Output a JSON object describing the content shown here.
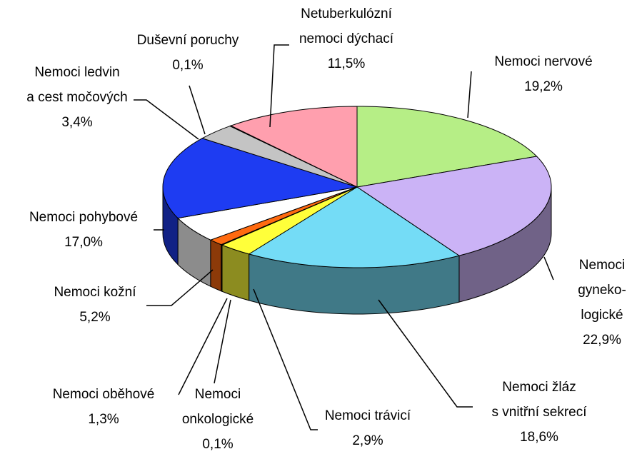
{
  "chart_data": {
    "type": "pie3d",
    "categories": [
      [
        "Nemoci nervové"
      ],
      [
        "Nemoci",
        "gyneko-",
        "logické"
      ],
      [
        "Nemoci žláz",
        "s vnitřní sekrecí"
      ],
      [
        "Nemoci trávicí"
      ],
      [
        "Nemoci",
        "onkologické"
      ],
      [
        "Nemoci oběhové"
      ],
      [
        "Nemoci kožní"
      ],
      [
        "Nemoci pohybové"
      ],
      [
        "Nemoci ledvin",
        "a cest močových"
      ],
      [
        "Duševní poruchy"
      ],
      [
        "Netuberkulózní",
        "nemoci dýchací"
      ]
    ],
    "values": [
      19.2,
      22.9,
      18.6,
      2.9,
      0.1,
      1.3,
      5.2,
      17.0,
      3.4,
      0.1,
      11.5
    ],
    "value_labels": [
      "19,2%",
      "22,9%",
      "18,6%",
      "2,9%",
      "0,1%",
      "1,3%",
      "5,2%",
      "17,0%",
      "3,4%",
      "0,1%",
      "11,5%"
    ],
    "colors": [
      "#b6ee86",
      "#cbb3f6",
      "#74dcf6",
      "#ffff3a",
      "#7a3a10",
      "#ff6a10",
      "#ffffff",
      "#1e3cf2",
      "#c4c4c4",
      "#444444",
      "#ff9fae"
    ]
  }
}
